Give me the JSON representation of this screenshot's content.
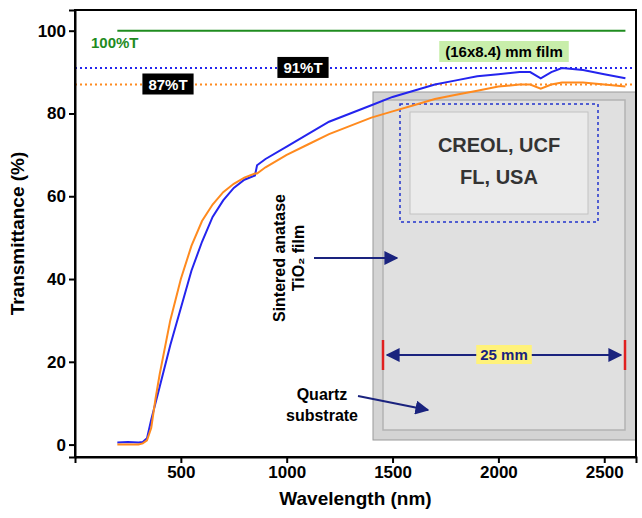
{
  "chart_data": {
    "type": "line",
    "x_label": "Wavelength (nm)",
    "y_label": "Transmittance (%)",
    "xlim": [
      0,
      2650
    ],
    "ylim": [
      -3,
      105
    ],
    "xticks": [
      500,
      1000,
      1500,
      2000,
      2500
    ],
    "yticks": [
      0,
      20,
      40,
      60,
      80,
      100
    ],
    "grid": false,
    "x": [
      200,
      250,
      300,
      320,
      340,
      360,
      380,
      400,
      450,
      500,
      550,
      600,
      650,
      700,
      750,
      800,
      850,
      860,
      900,
      1000,
      1100,
      1200,
      1300,
      1400,
      1500,
      1600,
      1700,
      1800,
      1900,
      2000,
      2100,
      2150,
      2200,
      2250,
      2300,
      2400,
      2500,
      2600
    ],
    "series": [
      {
        "label": "100%T",
        "color": "#1f8c1f",
        "values": [
          100,
          100,
          100,
          100,
          100,
          100,
          100,
          100,
          100,
          100,
          100,
          100,
          100,
          100,
          100,
          100,
          100,
          100,
          100,
          100,
          100,
          100,
          100,
          100,
          100,
          100,
          100,
          100,
          100,
          100,
          100,
          100,
          100,
          100,
          100,
          100,
          100,
          100
        ]
      },
      {
        "color": "#2424ee",
        "values": [
          0.5,
          0.6,
          0.5,
          0.6,
          1.5,
          6,
          10,
          14,
          24,
          33,
          42,
          49,
          55,
          59,
          62,
          64,
          65,
          67.5,
          69,
          72,
          75,
          78,
          80,
          82,
          84,
          85.5,
          87,
          88,
          89,
          89.5,
          90,
          90,
          88.5,
          90,
          91,
          90.5,
          89.5,
          88.5
        ]
      },
      {
        "color": "#ff8a1e",
        "values": [
          0,
          0,
          0,
          0.3,
          1,
          4,
          11,
          17,
          30,
          40,
          48,
          54,
          58,
          61,
          63,
          64.5,
          65.5,
          65.5,
          67,
          70,
          72.5,
          75,
          77,
          79,
          80.5,
          82,
          83.5,
          84.5,
          85.5,
          86.5,
          87,
          87,
          86,
          87,
          87.5,
          87.5,
          87,
          86.5
        ]
      }
    ],
    "reference_lines": [
      {
        "value": 91,
        "label": "91%T",
        "color": "#2424ee",
        "line_style": "dotted"
      },
      {
        "value": 87,
        "label": "87%T",
        "color": "#ff8a1e",
        "line_style": "dotted"
      }
    ],
    "inset": {
      "title": "(16x8.4) mm film",
      "film_text": [
        "CREOL, UCF",
        "FL, USA"
      ],
      "film_label": "Sintered anatase TiO₂ film",
      "substrate_label": "Quartz substrate",
      "scale_label": "25 mm"
    }
  }
}
